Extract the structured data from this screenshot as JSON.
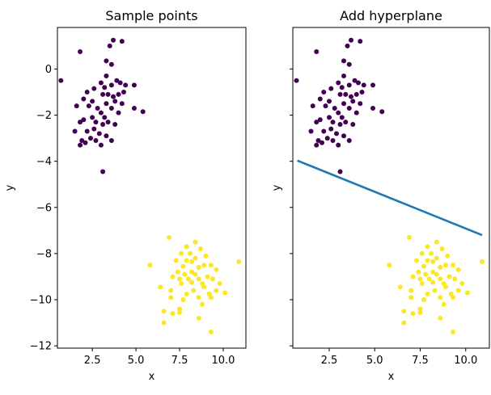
{
  "chart_data": [
    {
      "type": "scatter",
      "title": "Sample points",
      "xlabel": "x",
      "ylabel": "y",
      "xlim": [
        0.5,
        11.3
      ],
      "ylim": [
        -12.1,
        1.8
      ],
      "xticks": [
        2.5,
        5.0,
        7.5,
        10.0
      ],
      "xtick_labels": [
        "2.5",
        "5.0",
        "7.5",
        "10.0"
      ],
      "yticks": [
        0,
        -2,
        -4,
        -6,
        -8,
        -10,
        -12
      ],
      "ytick_labels": [
        "0",
        "−2",
        "−4",
        "−6",
        "−8",
        "−10",
        "−12"
      ],
      "show_ytick_labels": true,
      "grid": false,
      "colors": {
        "class_0": "#440154",
        "class_1": "#fde725"
      },
      "series": [
        {
          "values": [
            [
              0.7,
              -0.5
            ],
            [
              1.8,
              0.75
            ],
            [
              3.5,
              1.0
            ],
            [
              3.7,
              1.25
            ],
            [
              4.2,
              1.2
            ],
            [
              3.3,
              0.35
            ],
            [
              3.6,
              0.2
            ],
            [
              3.3,
              -0.3
            ],
            [
              3.0,
              -0.6
            ],
            [
              3.9,
              -0.5
            ],
            [
              4.1,
              -0.6
            ],
            [
              4.4,
              -0.7
            ],
            [
              4.9,
              -0.7
            ],
            [
              2.6,
              -0.85
            ],
            [
              3.2,
              -0.8
            ],
            [
              3.6,
              -0.7
            ],
            [
              2.2,
              -1.0
            ],
            [
              3.1,
              -1.1
            ],
            [
              3.4,
              -1.1
            ],
            [
              3.7,
              -1.2
            ],
            [
              4.0,
              -1.1
            ],
            [
              4.3,
              -1.0
            ],
            [
              2.0,
              -1.3
            ],
            [
              2.5,
              -1.4
            ],
            [
              3.3,
              -1.5
            ],
            [
              3.8,
              -1.4
            ],
            [
              4.2,
              -1.5
            ],
            [
              4.9,
              -1.7
            ],
            [
              5.4,
              -1.85
            ],
            [
              1.6,
              -1.6
            ],
            [
              2.3,
              -1.6
            ],
            [
              2.8,
              -1.7
            ],
            [
              3.0,
              -1.9
            ],
            [
              3.6,
              -1.7
            ],
            [
              4.0,
              -1.9
            ],
            [
              2.5,
              -2.1
            ],
            [
              3.2,
              -2.1
            ],
            [
              3.8,
              -2.4
            ],
            [
              2.0,
              -2.2
            ],
            [
              1.8,
              -2.3
            ],
            [
              2.7,
              -2.3
            ],
            [
              3.4,
              -2.3
            ],
            [
              3.1,
              -2.4
            ],
            [
              2.6,
              -2.6
            ],
            [
              1.5,
              -2.7
            ],
            [
              2.2,
              -2.7
            ],
            [
              2.9,
              -2.8
            ],
            [
              2.4,
              -3.0
            ],
            [
              3.3,
              -2.9
            ],
            [
              1.9,
              -3.1
            ],
            [
              2.7,
              -3.1
            ],
            [
              3.6,
              -3.1
            ],
            [
              2.1,
              -3.2
            ],
            [
              1.8,
              -3.3
            ],
            [
              3.0,
              -3.3
            ],
            [
              3.1,
              -4.45
            ]
          ]
        },
        {
          "values": [
            [
              6.9,
              -7.3
            ],
            [
              8.4,
              -7.5
            ],
            [
              7.9,
              -7.7
            ],
            [
              8.7,
              -7.8
            ],
            [
              7.6,
              -8.0
            ],
            [
              8.1,
              -8.0
            ],
            [
              9.0,
              -8.1
            ],
            [
              8.4,
              -8.2
            ],
            [
              7.3,
              -8.3
            ],
            [
              7.9,
              -8.3
            ],
            [
              8.2,
              -8.35
            ],
            [
              10.9,
              -8.35
            ],
            [
              5.8,
              -8.5
            ],
            [
              8.9,
              -8.5
            ],
            [
              9.3,
              -8.5
            ],
            [
              7.7,
              -8.55
            ],
            [
              8.6,
              -8.6
            ],
            [
              7.4,
              -8.8
            ],
            [
              8.2,
              -8.8
            ],
            [
              9.6,
              -8.7
            ],
            [
              7.1,
              -9.0
            ],
            [
              7.8,
              -8.9
            ],
            [
              8.4,
              -8.9
            ],
            [
              9.1,
              -9.0
            ],
            [
              7.5,
              -9.1
            ],
            [
              8.0,
              -9.1
            ],
            [
              8.6,
              -9.1
            ],
            [
              9.4,
              -9.1
            ],
            [
              8.2,
              -9.25
            ],
            [
              8.8,
              -9.3
            ],
            [
              7.6,
              -9.3
            ],
            [
              9.8,
              -9.3
            ],
            [
              6.4,
              -9.45
            ],
            [
              8.9,
              -9.45
            ],
            [
              7.0,
              -9.6
            ],
            [
              8.3,
              -9.6
            ],
            [
              9.6,
              -9.6
            ],
            [
              10.1,
              -9.7
            ],
            [
              7.9,
              -9.75
            ],
            [
              9.2,
              -9.75
            ],
            [
              7.0,
              -9.9
            ],
            [
              8.6,
              -9.9
            ],
            [
              9.3,
              -9.9
            ],
            [
              7.7,
              -10.0
            ],
            [
              8.8,
              -10.2
            ],
            [
              7.5,
              -10.4
            ],
            [
              7.5,
              -10.55
            ],
            [
              6.6,
              -10.5
            ],
            [
              7.1,
              -10.6
            ],
            [
              8.6,
              -10.8
            ],
            [
              6.6,
              -11.0
            ],
            [
              9.3,
              -11.4
            ]
          ]
        }
      ]
    },
    {
      "type": "scatter",
      "title": "Add hyperplane",
      "xlabel": "x",
      "ylabel": "y",
      "xlim": [
        0.5,
        11.3
      ],
      "ylim": [
        -12.1,
        1.8
      ],
      "xticks": [
        2.5,
        5.0,
        7.5,
        10.0
      ],
      "xtick_labels": [
        "2.5",
        "5.0",
        "7.5",
        "10.0"
      ],
      "yticks": [
        0,
        -2,
        -4,
        -6,
        -8,
        -10,
        -12
      ],
      "show_ytick_labels": false,
      "grid": false,
      "line": {
        "x": [
          0.75,
          10.9
        ],
        "y": [
          -3.97,
          -7.2
        ],
        "color": "#1f77b4"
      },
      "series_same_as_first_panel": true
    }
  ]
}
